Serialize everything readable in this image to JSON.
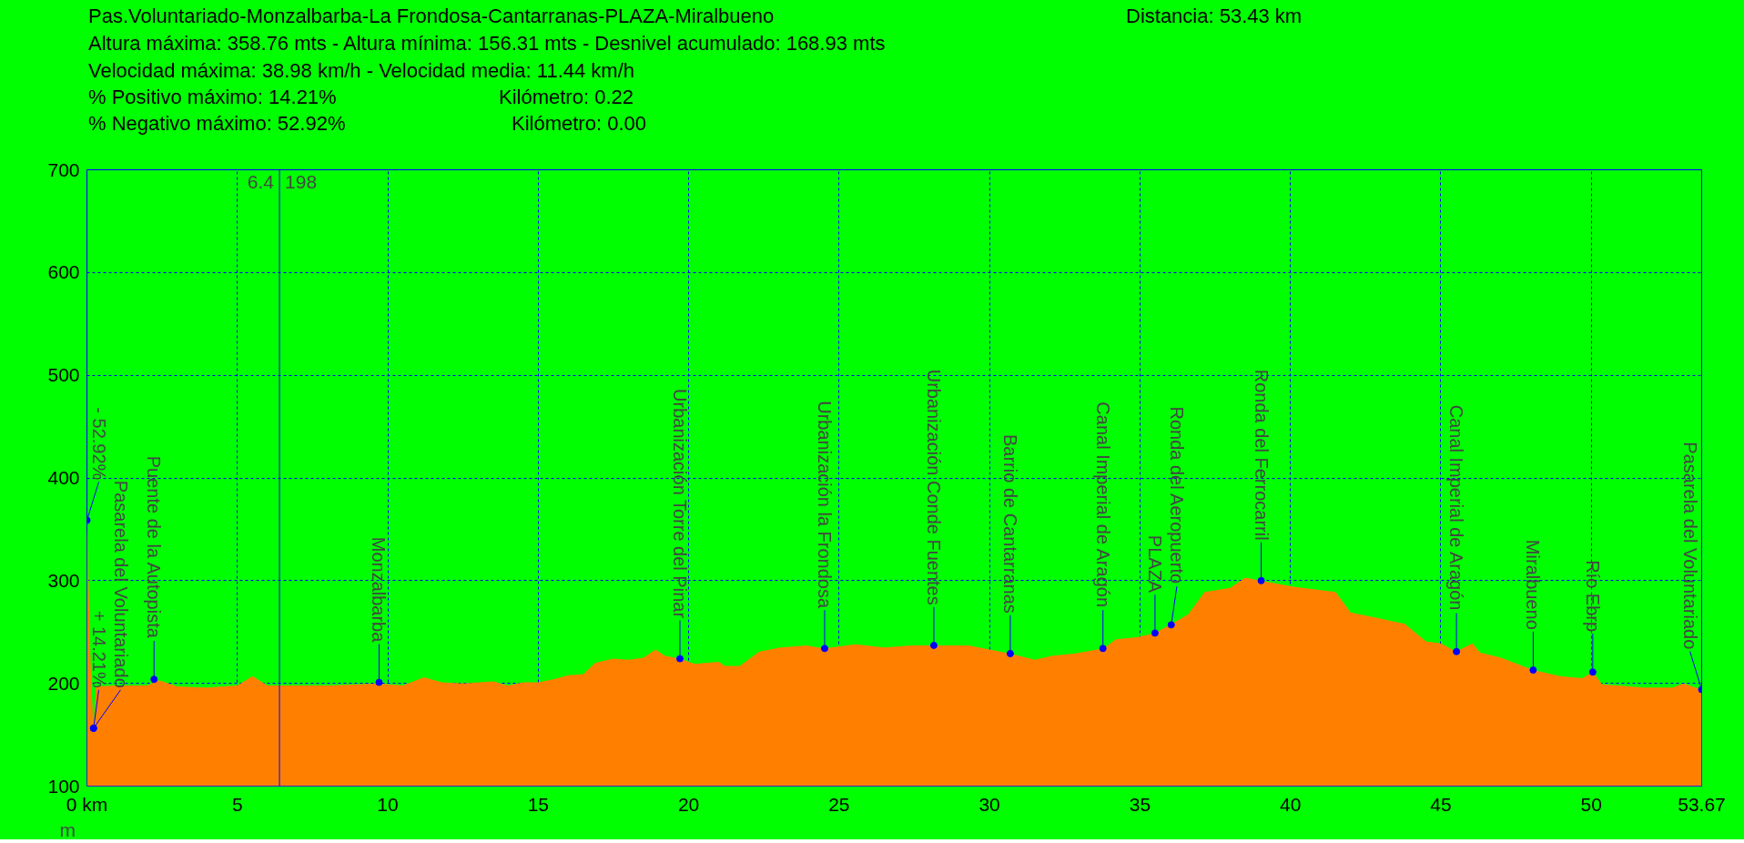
{
  "chart_data": {
    "type": "area",
    "title": "Pas.Voluntariado-Monzalbarba-La Frondosa-Cantarranas-PLAZA-Miralbueno",
    "ylabel": "m",
    "x": [
      0,
      0.05,
      0.1,
      0.15,
      0.22,
      0.3,
      1.0,
      2.0,
      2.4,
      3.0,
      4.0,
      5.0,
      5.5,
      6.0,
      7.0,
      8.0,
      9.0,
      9.7,
      10.5,
      11.2,
      11.8,
      12.5,
      13.5,
      14.0,
      14.5,
      15.0,
      15.5,
      16.0,
      16.5,
      16.9,
      17.5,
      18.0,
      18.5,
      18.9,
      19.2,
      19.7,
      20.2,
      21.0,
      21.2,
      21.7,
      22.35,
      23.05,
      23.9,
      24.5,
      25.55,
      26.5,
      27.4,
      28.15,
      29.3,
      30.0,
      30.7,
      31.5,
      32.1,
      32.8,
      33.8,
      34.2,
      34.9,
      35.5,
      36.0,
      36.6,
      37.15,
      38.0,
      38.5,
      39.0,
      40.1,
      41.5,
      42.0,
      43.8,
      44.5,
      45.0,
      45.5,
      46.05,
      46.3,
      47.0,
      48.07,
      48.97,
      49.7,
      50.05,
      50.36,
      51.75,
      52.7,
      53.07,
      53.67
    ],
    "values": [
      358.76,
      300,
      240,
      198,
      156,
      197,
      198,
      198,
      203,
      197,
      196,
      198,
      207,
      198,
      198,
      198,
      199,
      200,
      198,
      206,
      201,
      200,
      202,
      198,
      201,
      201,
      204,
      208,
      209,
      220,
      224,
      223,
      225,
      233,
      227,
      224,
      219,
      221,
      217,
      217,
      231,
      235,
      237,
      234,
      238,
      235,
      237,
      237,
      237,
      233,
      229,
      223,
      227,
      229,
      234,
      243,
      245,
      249,
      257,
      267,
      289,
      293,
      303,
      300,
      294,
      289,
      269,
      258,
      241,
      239,
      231,
      239,
      230,
      225,
      213,
      207,
      205,
      211,
      199,
      196,
      196,
      200,
      194
    ],
    "color": "#ff8000",
    "xlim": [
      0,
      53.67
    ],
    "ylim": [
      100,
      700
    ],
    "xticks": [
      {
        "value": 0,
        "label": "0 km"
      },
      5,
      10,
      15,
      20,
      25,
      30,
      35,
      40,
      45,
      50,
      53.67
    ],
    "yticks": [
      100,
      200,
      300,
      400,
      500,
      600,
      700
    ],
    "grid": true,
    "ref_lines": [
      {
        "axis": "x",
        "value": 6.4,
        "label": "6.4",
        "color": "#0000ff"
      }
    ],
    "annotations": [
      "Distancia: 53.43 km",
      "Altura máxima: 358.76 mts - Altura mínima: 156.31 mts - Desnivel acumulado: 168.93 mts",
      "Velocidad máxima: 38.98 km/h - Velocidad media: 11.44 km/h",
      "% Positivo máximo: 14.21%",
      "Kilómetro: 0.22",
      "% Negativo máximo: 52.92%",
      "Kilómetro: 0.00",
      "198",
      {
        "text": "- 52.92%",
        "x": 0,
        "y": 358.76
      },
      {
        "text": "+ 14.21%",
        "x": 0.22,
        "y": 156.31
      },
      {
        "text": "Pasarela del Voluntariado",
        "x": 0.22,
        "y": 156.31
      },
      {
        "text": "Puente de la Autopista",
        "x": 2.23,
        "y": 204
      },
      {
        "text": "Monzalbarba",
        "x": 9.71,
        "y": 201
      },
      {
        "text": "Urbanización Torre del Pinar",
        "x": 19.71,
        "y": 224
      },
      {
        "text": "Urbanización la Frondosa",
        "x": 24.52,
        "y": 234
      },
      {
        "text": "Urbanización Conde Fuentes",
        "x": 28.15,
        "y": 237
      },
      {
        "text": "Barrio de Cantarranas",
        "x": 30.69,
        "y": 229
      },
      {
        "text": "Canal Imperial de Aragón",
        "x": 33.77,
        "y": 234
      },
      {
        "text": "PLAZA",
        "x": 35.5,
        "y": 249
      },
      {
        "text": "Ronda del Aeropuerto",
        "x": 36.04,
        "y": 257
      },
      {
        "text": "Ronda del Ferrocarril",
        "x": 39.03,
        "y": 300
      },
      {
        "text": "Canal Imperial de Aragón",
        "x": 45.52,
        "y": 231
      },
      {
        "text": "Miralbueno",
        "x": 48.07,
        "y": 213
      },
      {
        "text": "Río Ebrp",
        "x": 50.05,
        "y": 211
      },
      {
        "text": "Pasarela del Voluntariado",
        "x": 53.67,
        "y": 194
      }
    ]
  }
}
